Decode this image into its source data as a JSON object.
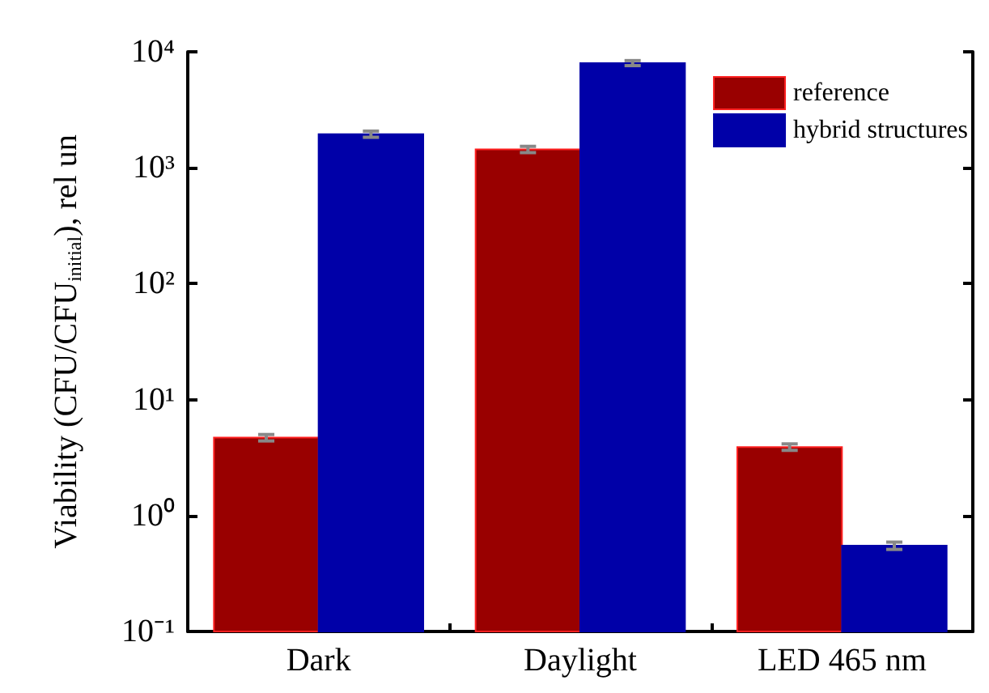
{
  "chart_data": {
    "type": "bar",
    "ylabel": "Viability (CFU/CFU$_{initial}$), rel un",
    "categories": [
      "Dark",
      "Daylight",
      "LED 465 nm"
    ],
    "series": [
      {
        "name": "reference",
        "color": "#990000",
        "values": [
          4.7,
          1440,
          3.9
        ],
        "errors": [
          0.3,
          90,
          0.25
        ]
      },
      {
        "name": "hybrid structures",
        "color": "#0000a8",
        "values": [
          1950,
          8000,
          0.55
        ],
        "errors": [
          120,
          400,
          0.04
        ]
      }
    ],
    "log": "y",
    "ylim": [
      0.1,
      10000
    ],
    "yticks": [
      {
        "value": 0.1,
        "label": "10⁻¹"
      },
      {
        "value": 1,
        "label": "10⁰"
      },
      {
        "value": 10,
        "label": "10¹"
      },
      {
        "value": 100,
        "label": "10²"
      },
      {
        "value": 1000,
        "label": "10³"
      },
      {
        "value": 10000,
        "label": "10⁴"
      }
    ],
    "legend": "top right",
    "grid": false
  }
}
